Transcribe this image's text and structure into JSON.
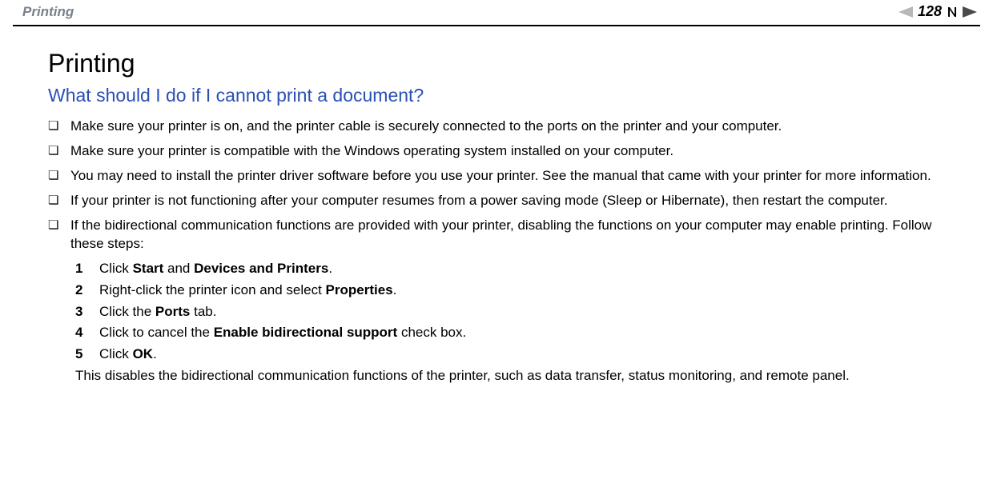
{
  "header": {
    "breadcrumb": "Printing",
    "page_number": "128"
  },
  "colors": {
    "breadcrumb": "#79808a",
    "heading2": "#2a4fb5",
    "nav_inactive": "#b8b8b8",
    "nav_dark": "#4a4a4a",
    "text": "#000000",
    "rule": "#000000"
  },
  "title": "Printing",
  "subtitle": "What should I do if I cannot print a document?",
  "bullets": [
    {
      "text": "Make sure your printer is on, and the printer cable is securely connected to the ports on the printer and your computer."
    },
    {
      "text": "Make sure your printer is compatible with the Windows operating system installed on your computer."
    },
    {
      "text": "You may need to install the printer driver software before you use your printer. See the manual that came with your printer for more information."
    },
    {
      "text": "If your printer is not functioning after your computer resumes from a power saving mode (Sleep or Hibernate), then restart the computer."
    },
    {
      "text": "If the bidirectional communication functions are provided with your printer, disabling the functions on your computer may enable printing. Follow these steps:"
    }
  ],
  "steps": [
    {
      "num": "1",
      "pre": "Click ",
      "bold1": "Start",
      "mid": " and ",
      "bold2": "Devices and Printers",
      "post": "."
    },
    {
      "num": "2",
      "pre": "Right-click the printer icon and select ",
      "bold1": "Properties",
      "mid": "",
      "bold2": "",
      "post": "."
    },
    {
      "num": "3",
      "pre": "Click the ",
      "bold1": "Ports",
      "mid": "",
      "bold2": "",
      "post": " tab."
    },
    {
      "num": "4",
      "pre": "Click to cancel the ",
      "bold1": "Enable bidirectional support",
      "mid": "",
      "bold2": "",
      "post": " check box."
    },
    {
      "num": "5",
      "pre": "Click ",
      "bold1": "OK",
      "mid": "",
      "bold2": "",
      "post": "."
    }
  ],
  "followup": "This disables the bidirectional communication functions of the printer, such as data transfer, status monitoring, and remote panel.",
  "bullet_glyph": "❏"
}
